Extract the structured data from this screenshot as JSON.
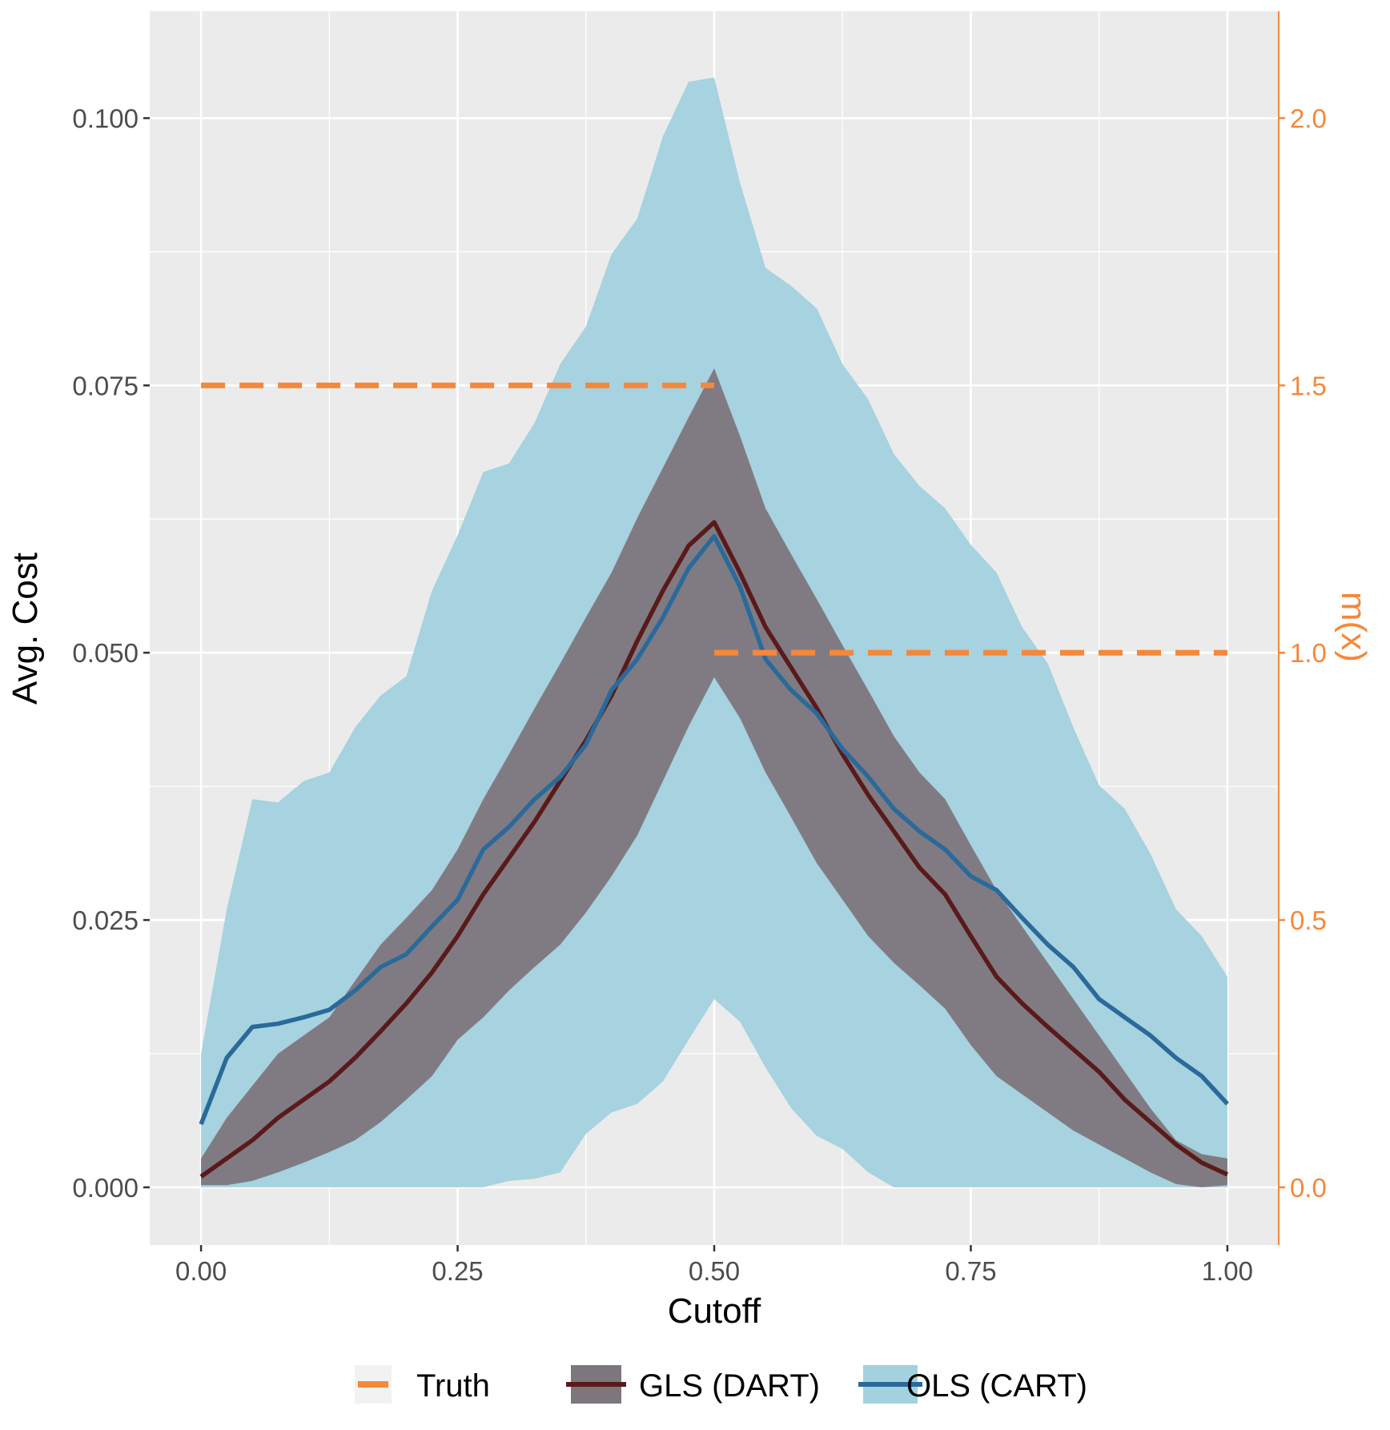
{
  "chart_data": {
    "type": "area",
    "xlabel": "Cutoff",
    "ylabel": "Avg. Cost",
    "y2label": "m(x)",
    "xlim": [
      -0.05,
      1.05
    ],
    "ylim": [
      -0.0054,
      0.11
    ],
    "y2lim": [
      -0.108,
      2.2
    ],
    "grid": true,
    "legend_position": "bottom",
    "x_ticks": [
      "0.00",
      "0.25",
      "0.50",
      "0.75",
      "1.00"
    ],
    "y_ticks": [
      "0.000",
      "0.025",
      "0.050",
      "0.075",
      "0.100"
    ],
    "y2_ticks": [
      "0.0",
      "0.5",
      "1.0",
      "1.5",
      "2.0"
    ],
    "colors": {
      "truth": "#f5883a",
      "gls_band": "#7d767d",
      "gls_line": "#5a1a1a",
      "ols_band": "#a3d1de",
      "ols_line": "#2a6a9a",
      "panel": "#ebebeb"
    },
    "legend": [
      "Truth",
      "GLS (DART)",
      "OLS (CART)"
    ],
    "x": [
      0,
      0.025,
      0.05,
      0.075,
      0.1,
      0.125,
      0.15,
      0.175,
      0.2,
      0.225,
      0.25,
      0.275,
      0.3,
      0.325,
      0.35,
      0.375,
      0.4,
      0.425,
      0.45,
      0.475,
      0.5,
      0.525,
      0.55,
      0.575,
      0.6,
      0.625,
      0.65,
      0.675,
      0.7,
      0.725,
      0.75,
      0.775,
      0.8,
      0.825,
      0.85,
      0.875,
      0.9,
      0.925,
      0.95,
      0.975,
      1.0
    ],
    "series": [
      {
        "name": "OLS (CART)",
        "role": "band",
        "upper": [
          0.0125,
          0.026,
          0.0363,
          0.036,
          0.038,
          0.0388,
          0.043,
          0.046,
          0.0478,
          0.0558,
          0.061,
          0.0669,
          0.0677,
          0.0715,
          0.077,
          0.0805,
          0.0873,
          0.0906,
          0.0983,
          0.1034,
          0.1038,
          0.094,
          0.086,
          0.0843,
          0.0822,
          0.077,
          0.0737,
          0.0686,
          0.0656,
          0.0635,
          0.0601,
          0.0575,
          0.0524,
          0.049,
          0.043,
          0.0376,
          0.0354,
          0.0312,
          0.026,
          0.0235,
          0.0197
        ],
        "lower": [
          0,
          0,
          0,
          0,
          0,
          0,
          0,
          0,
          0,
          0,
          0,
          0,
          0.0006,
          0.0008,
          0.0014,
          0.005,
          0.007,
          0.0078,
          0.0099,
          0.0138,
          0.0176,
          0.0155,
          0.0112,
          0.0074,
          0.0048,
          0.0036,
          0.0014,
          0,
          0,
          0,
          0,
          0,
          0,
          0,
          0,
          0,
          0,
          0,
          0,
          0,
          0
        ]
      },
      {
        "name": "GLS (DART)",
        "role": "band",
        "upper": [
          0.0027,
          0.0065,
          0.0095,
          0.0125,
          0.0142,
          0.0159,
          0.0193,
          0.0227,
          0.0252,
          0.0278,
          0.0316,
          0.0363,
          0.0405,
          0.0448,
          0.049,
          0.0533,
          0.0575,
          0.0626,
          0.0673,
          0.072,
          0.0766,
          0.0703,
          0.0635,
          0.0592,
          0.055,
          0.0507,
          0.0465,
          0.0422,
          0.0388,
          0.0363,
          0.032,
          0.0278,
          0.0244,
          0.021,
          0.0176,
          0.0142,
          0.0108,
          0.0074,
          0.0044,
          0.0031,
          0.0027
        ],
        "lower": [
          0.0002,
          0.0002,
          0.0006,
          0.0014,
          0.0023,
          0.0033,
          0.0044,
          0.0061,
          0.0082,
          0.0104,
          0.0138,
          0.0159,
          0.0184,
          0.0206,
          0.0227,
          0.0257,
          0.0291,
          0.0329,
          0.038,
          0.0431,
          0.0477,
          0.0439,
          0.0388,
          0.0346,
          0.0303,
          0.0269,
          0.0235,
          0.021,
          0.0189,
          0.0167,
          0.0133,
          0.0104,
          0.0087,
          0.007,
          0.0053,
          0.004,
          0.0027,
          0.0014,
          0.0003,
          0,
          0.0002
        ]
      },
      {
        "name": "GLS (DART)",
        "role": "line",
        "values": [
          0.001,
          0.0027,
          0.0044,
          0.0065,
          0.0082,
          0.0099,
          0.0121,
          0.0146,
          0.0172,
          0.0201,
          0.0235,
          0.0274,
          0.0308,
          0.0342,
          0.038,
          0.0418,
          0.046,
          0.0511,
          0.0558,
          0.06,
          0.0622,
          0.0575,
          0.0524,
          0.0486,
          0.0448,
          0.0405,
          0.0367,
          0.0333,
          0.0299,
          0.0274,
          0.0235,
          0.0197,
          0.0172,
          0.015,
          0.0129,
          0.0108,
          0.0082,
          0.0061,
          0.004,
          0.0023,
          0.0012
        ]
      },
      {
        "name": "OLS (CART)",
        "role": "line",
        "values": [
          0.0059,
          0.0121,
          0.015,
          0.0153,
          0.0159,
          0.0166,
          0.0184,
          0.0206,
          0.0218,
          0.0244,
          0.0269,
          0.0316,
          0.0337,
          0.0363,
          0.0384,
          0.0414,
          0.0465,
          0.0494,
          0.0533,
          0.0579,
          0.0609,
          0.0562,
          0.0494,
          0.0465,
          0.0443,
          0.041,
          0.0384,
          0.0354,
          0.0333,
          0.0316,
          0.0291,
          0.0278,
          0.0252,
          0.0227,
          0.0206,
          0.0176,
          0.0159,
          0.0142,
          0.0121,
          0.0104,
          0.0078
        ]
      },
      {
        "name": "Truth",
        "role": "step",
        "axis": "right",
        "segments": [
          {
            "x": [
              0,
              0.5
            ],
            "m": 1.5
          },
          {
            "x": [
              0.5,
              1.0
            ],
            "m": 1.0
          }
        ]
      }
    ]
  }
}
